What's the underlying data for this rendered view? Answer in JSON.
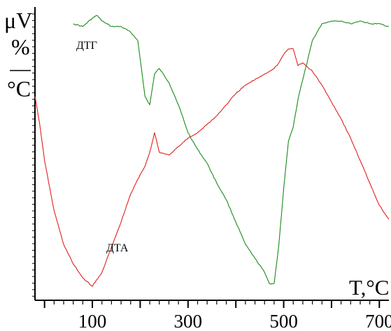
{
  "chart_data": {
    "type": "line",
    "xlabel": "T,°C",
    "ylabel_top": "μV",
    "ylabel_bottom_num": "%",
    "ylabel_bottom_den": "°C",
    "xlim": [
      -20,
      720
    ],
    "x_ticks": [
      100,
      300,
      500,
      700
    ],
    "tick_labels": [
      "100",
      "300",
      "500",
      "700"
    ],
    "grid": false,
    "legend": "none",
    "colors": {
      "axis": "#000000",
      "dtg": "#1a8a1a",
      "dta": "#e02020"
    },
    "series": [
      {
        "name": "ДТГ",
        "color": "#1a8a1a",
        "x": [
          60,
          80,
          100,
          110,
          120,
          140,
          160,
          180,
          195,
          210,
          220,
          230,
          240,
          260,
          280,
          300,
          320,
          340,
          360,
          380,
          400,
          420,
          440,
          460,
          470,
          480,
          490,
          500,
          510,
          520,
          530,
          540,
          560,
          580,
          600,
          620,
          640,
          660,
          680,
          700,
          720
        ],
        "y": [
          94,
          93,
          96,
          97,
          95,
          93,
          93,
          91,
          88,
          68,
          65,
          76,
          78,
          73,
          65,
          55,
          49,
          44,
          37,
          31,
          23,
          15,
          10,
          5,
          1,
          1,
          15,
          35,
          52,
          57,
          67,
          74,
          88,
          94,
          95,
          95,
          94,
          95,
          94,
          94,
          93
        ]
      },
      {
        "name": "ДТА",
        "color": "#e02020",
        "x": [
          -20,
          -10,
          0,
          20,
          40,
          60,
          80,
          100,
          120,
          140,
          160,
          180,
          200,
          210,
          220,
          230,
          240,
          260,
          280,
          300,
          320,
          340,
          360,
          380,
          400,
          420,
          440,
          460,
          470,
          480,
          490,
          500,
          510,
          520,
          530,
          540,
          560,
          580,
          600,
          620,
          640,
          660,
          680,
          700,
          720
        ],
        "y": [
          68,
          58,
          45,
          27,
          15,
          8,
          3,
          0,
          5,
          14,
          23,
          33,
          40,
          43,
          48,
          55,
          48,
          47,
          50,
          53,
          55,
          58,
          61,
          65,
          69,
          72,
          74,
          76,
          77,
          78,
          80,
          83,
          85,
          85,
          79,
          80,
          77,
          72,
          66,
          60,
          53,
          45,
          37,
          29,
          24
        ]
      }
    ]
  }
}
